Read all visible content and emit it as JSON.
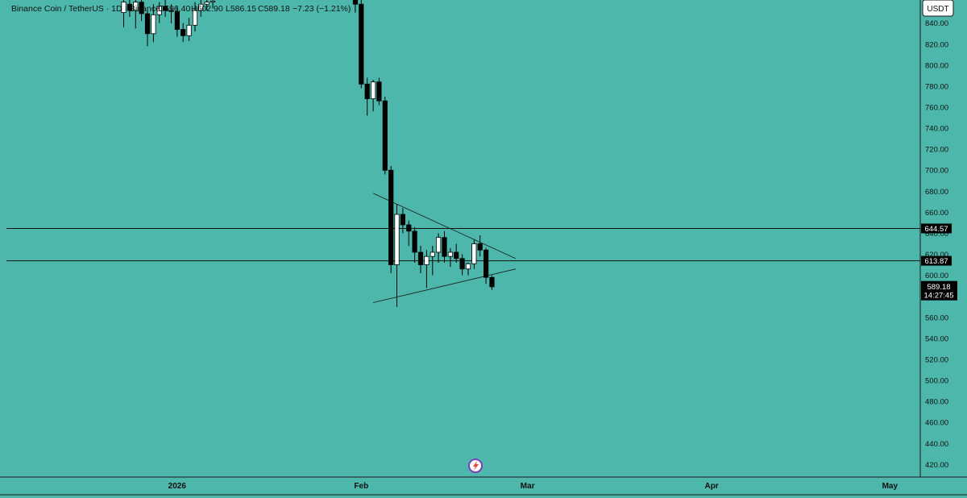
{
  "chart_data": {
    "type": "candlestick",
    "ohlc_legend": {
      "symbol": "Binance Coin / TetherUS · 1D · Binance",
      "open": "O596.40",
      "high": "H602.90",
      "low": "L586.15",
      "close": "C589.18",
      "change": "−7.23 (−1.21%)"
    },
    "currency_button": "USDT",
    "y_range": [
      408,
      862
    ],
    "y_ticks": [
      "840.00",
      "820.00",
      "800.00",
      "780.00",
      "760.00",
      "740.00",
      "720.00",
      "700.00",
      "680.00",
      "660.00",
      "640.00",
      "620.00",
      "600.00",
      "580.00",
      "560.00",
      "540.00",
      "520.00",
      "500.00",
      "480.00",
      "460.00",
      "440.00",
      "420.00"
    ],
    "x_ticks": [
      {
        "label": "2026",
        "day": 5
      },
      {
        "label": "Feb",
        "day": 36
      },
      {
        "label": "Mar",
        "day": 64
      },
      {
        "label": "Apr",
        "day": 95
      },
      {
        "label": "May",
        "day": 125
      }
    ],
    "horizontal_levels": [
      {
        "label": "644.57",
        "value": 644.57
      },
      {
        "label": "613.87",
        "value": 613.87
      }
    ],
    "last_price": {
      "label": "589.18",
      "countdown": "14:27:45",
      "value": 589.18
    },
    "trendlines": [
      {
        "name": "upper",
        "p1": {
          "day": 38.0,
          "price": 678
        },
        "p2": {
          "day": 62.0,
          "price": 616
        }
      },
      {
        "name": "lower",
        "p1": {
          "day": 38.0,
          "price": 574
        },
        "p2": {
          "day": 62.0,
          "price": 606
        }
      }
    ],
    "candles": [
      {
        "day": -4,
        "o": 850,
        "h": 862,
        "l": 836,
        "c": 860
      },
      {
        "day": -3,
        "o": 858,
        "h": 862,
        "l": 846,
        "c": 852
      },
      {
        "day": -2,
        "o": 852,
        "h": 862,
        "l": 835,
        "c": 860
      },
      {
        "day": -1,
        "o": 860,
        "h": 862,
        "l": 842,
        "c": 849
      },
      {
        "day": 0,
        "o": 849,
        "h": 855,
        "l": 818,
        "c": 830
      },
      {
        "day": 1,
        "o": 830,
        "h": 858,
        "l": 822,
        "c": 848
      },
      {
        "day": 2,
        "o": 848,
        "h": 860,
        "l": 840,
        "c": 856
      },
      {
        "day": 3,
        "o": 856,
        "h": 862,
        "l": 846,
        "c": 852
      },
      {
        "day": 4,
        "o": 852,
        "h": 858,
        "l": 840,
        "c": 851
      },
      {
        "day": 5,
        "o": 851,
        "h": 856,
        "l": 827,
        "c": 834
      },
      {
        "day": 6,
        "o": 834,
        "h": 840,
        "l": 822,
        "c": 828
      },
      {
        "day": 7,
        "o": 828,
        "h": 845,
        "l": 823,
        "c": 838
      },
      {
        "day": 8,
        "o": 838,
        "h": 860,
        "l": 832,
        "c": 852
      },
      {
        "day": 9,
        "o": 852,
        "h": 862,
        "l": 846,
        "c": 858
      },
      {
        "day": 10,
        "o": 858,
        "h": 862,
        "l": 852,
        "c": 860
      },
      {
        "day": 11,
        "o": 860,
        "h": 862,
        "l": 854,
        "c": 861
      },
      {
        "day": 35,
        "o": 862,
        "h": 862,
        "l": 850,
        "c": 858
      },
      {
        "day": 36,
        "o": 858,
        "h": 862,
        "l": 778,
        "c": 782
      },
      {
        "day": 37,
        "o": 782,
        "h": 788,
        "l": 752,
        "c": 768
      },
      {
        "day": 38,
        "o": 768,
        "h": 786,
        "l": 756,
        "c": 784
      },
      {
        "day": 39,
        "o": 784,
        "h": 788,
        "l": 762,
        "c": 766
      },
      {
        "day": 40,
        "o": 766,
        "h": 770,
        "l": 696,
        "c": 700
      },
      {
        "day": 41,
        "o": 700,
        "h": 704,
        "l": 602,
        "c": 610
      },
      {
        "day": 42,
        "o": 610,
        "h": 668,
        "l": 570,
        "c": 658
      },
      {
        "day": 43,
        "o": 658,
        "h": 664,
        "l": 640,
        "c": 648
      },
      {
        "day": 44,
        "o": 648,
        "h": 652,
        "l": 628,
        "c": 642
      },
      {
        "day": 45,
        "o": 642,
        "h": 646,
        "l": 612,
        "c": 622
      },
      {
        "day": 46,
        "o": 622,
        "h": 628,
        "l": 602,
        "c": 610
      },
      {
        "day": 47,
        "o": 610,
        "h": 624,
        "l": 588,
        "c": 618
      },
      {
        "day": 48,
        "o": 618,
        "h": 628,
        "l": 600,
        "c": 622
      },
      {
        "day": 49,
        "o": 622,
        "h": 640,
        "l": 612,
        "c": 636
      },
      {
        "day": 50,
        "o": 636,
        "h": 642,
        "l": 612,
        "c": 618
      },
      {
        "day": 51,
        "o": 618,
        "h": 626,
        "l": 608,
        "c": 622
      },
      {
        "day": 52,
        "o": 622,
        "h": 630,
        "l": 612,
        "c": 616
      },
      {
        "day": 53,
        "o": 616,
        "h": 620,
        "l": 600,
        "c": 606
      },
      {
        "day": 54,
        "o": 606,
        "h": 612,
        "l": 600,
        "c": 611
      },
      {
        "day": 55,
        "o": 611,
        "h": 634,
        "l": 606,
        "c": 630
      },
      {
        "day": 56,
        "o": 630,
        "h": 638,
        "l": 618,
        "c": 624
      },
      {
        "day": 57,
        "o": 624,
        "h": 626,
        "l": 592,
        "c": 598
      },
      {
        "day": 58,
        "o": 598,
        "h": 600,
        "l": 586,
        "c": 589
      }
    ]
  }
}
